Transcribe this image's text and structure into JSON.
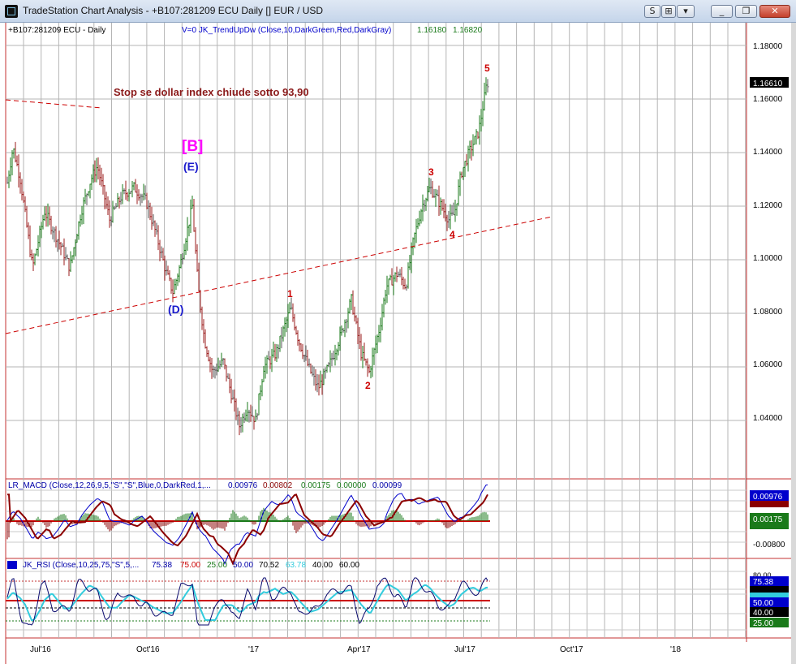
{
  "window": {
    "title": "TradeStation Chart Analysis - +B107:281209 ECU Daily [] EUR / USD",
    "buttons": [
      "S",
      "⊞",
      "▾",
      "_",
      "❐",
      "✕"
    ]
  },
  "header": {
    "symbol": "+B107:281209 ECU - Daily",
    "indicator": "V=0  JK_TrendUpDw (Close,10,DarkGreen,Red,DarkGray)",
    "v1": "1.16180",
    "v2": "1.16820"
  },
  "price_scale": {
    "ticks": [
      "1.18000",
      "1.16000",
      "1.14000",
      "1.12000",
      "1.10000",
      "1.08000",
      "1.06000",
      "1.04000"
    ],
    "last": "1.16610"
  },
  "annotations": {
    "note": "Stop se dollar index chiude sotto 93,90",
    "B": "[B]",
    "E": "(E)",
    "D": "(D)",
    "w1": "1",
    "w2": "2",
    "w3": "3",
    "w4": "4",
    "w5": "5"
  },
  "macd": {
    "label": "LR_MACD (Close,12,26,9,5,\"S\",\"S\",Blue,0,DarkRed,1,...",
    "values": [
      "0.00976",
      "0.00802",
      "0.00175",
      "0.00000",
      "0.00099"
    ],
    "scale": [
      "0.00976",
      "0.00802",
      "0.00175",
      "0.00000",
      "-0.00800"
    ]
  },
  "rsi": {
    "label": "JK_RSI (Close,10,25,75,\"S\",5,...",
    "values": [
      "75.38",
      "75.00",
      "25.00",
      "50.00",
      "70.52",
      "63.78",
      "40.00",
      "60.00"
    ],
    "scale": [
      "80.00",
      "75.38",
      "70.52",
      "63.78",
      "50.00",
      "40.00",
      "25.00"
    ]
  },
  "x_axis": [
    "Jul'16",
    "Oct'16",
    "'17",
    "Apr'17",
    "Jul'17",
    "Oct'17",
    "'18"
  ],
  "colors": {
    "up": "#1a7a1a",
    "down": "#9b1c1c",
    "neutral": "#555555",
    "trend": "#cc0000",
    "wave": "#cc0000",
    "B": "#ff00ff",
    "ED": "#1a1acc",
    "macd": "#0000cc",
    "signal": "#8b0000",
    "rsi": "#0a0a6e",
    "rsi_avg": "#33ccdd"
  },
  "chart_data": {
    "type": "ohlc",
    "title": "+B107:281209 ECU - Daily",
    "xlabel": "",
    "ylabel": "",
    "x": [
      "2016-06",
      "2016-07",
      "2016-08",
      "2016-09",
      "2016-10",
      "2016-11",
      "2016-12",
      "2017-01",
      "2017-02",
      "2017-03",
      "2017-04",
      "2017-05",
      "2017-06",
      "2017-07"
    ],
    "series": [
      {
        "name": "EUR/USD",
        "values": [
          1.125,
          1.118,
          1.128,
          1.124,
          1.098,
          1.075,
          1.052,
          1.072,
          1.062,
          1.072,
          1.068,
          1.12,
          1.128,
          1.166
        ]
      }
    ],
    "ylim": [
      1.03,
      1.19
    ],
    "xlim": [
      "2016-06",
      "2018-01"
    ],
    "waves": [
      {
        "label": "1",
        "x": "2017-02-02",
        "y": 1.085
      },
      {
        "label": "2",
        "x": "2017-04-10",
        "y": 1.056
      },
      {
        "label": "3",
        "x": "2017-05-27",
        "y": 1.127
      },
      {
        "label": "4",
        "x": "2017-06-20",
        "y": 1.112
      },
      {
        "label": "5",
        "x": "2017-08-02",
        "y": 1.168
      }
    ]
  }
}
